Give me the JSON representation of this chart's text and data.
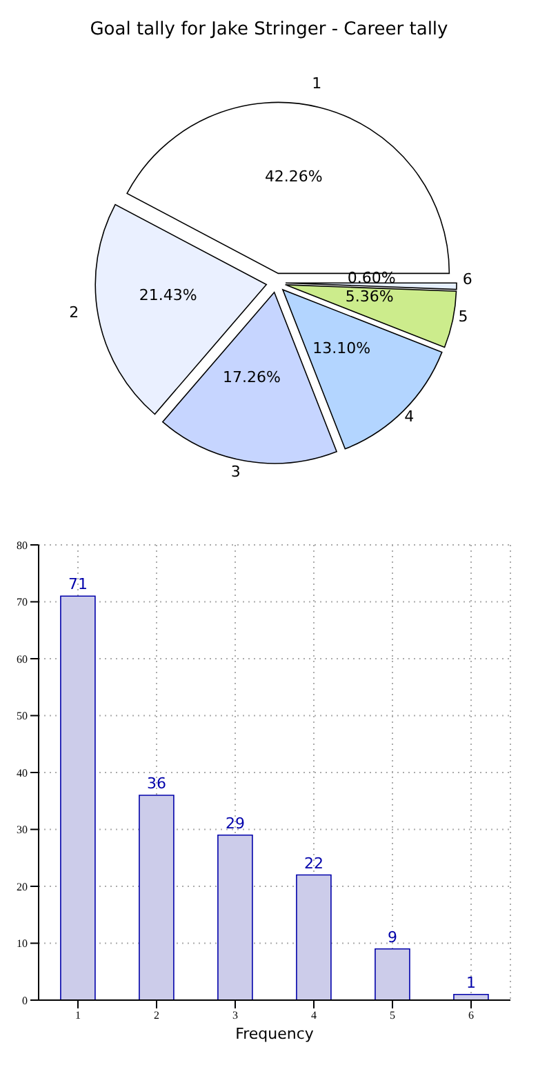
{
  "chart_data": [
    {
      "type": "pie",
      "title": "Goal tally for Jake Stringer - Career tally",
      "categories": [
        "1",
        "2",
        "3",
        "4",
        "5",
        "6"
      ],
      "values": [
        42.26,
        21.43,
        17.26,
        13.1,
        5.36,
        0.6
      ],
      "colors": [
        "#ffffff",
        "#eaf0ff",
        "#c6d5ff",
        "#b3d5ff",
        "#ccec8c",
        "#e6f0ff"
      ],
      "value_labels": [
        "42.26%",
        "21.43%",
        "17.26%",
        "13.10%",
        "5.36%",
        "0.60%"
      ],
      "legend": false
    },
    {
      "type": "bar",
      "categories": [
        "1",
        "2",
        "3",
        "4",
        "5",
        "6"
      ],
      "values": [
        71,
        36,
        29,
        22,
        9,
        1
      ],
      "color": "#ccccea",
      "xlabel": "Frequency",
      "ylim": [
        0,
        80
      ],
      "yticks": [
        0,
        10,
        20,
        30,
        40,
        50,
        60,
        70,
        80
      ],
      "grid": true,
      "data_labels": true,
      "legend": false
    }
  ]
}
